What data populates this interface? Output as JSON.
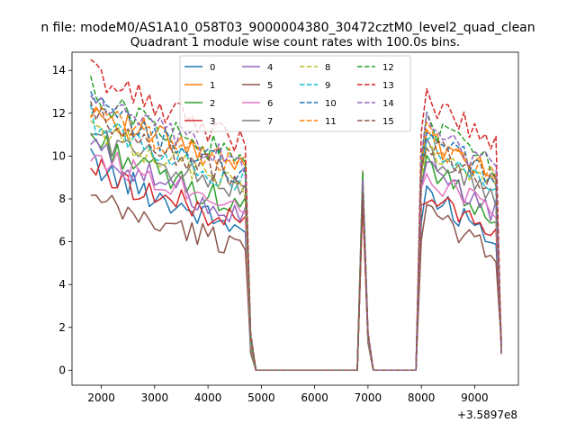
{
  "figure": {
    "suptitle": "n file: modeM0/AS1A10_058T03_9000004380_30472cztM0_level2_quad_clean",
    "title": "Quadrant 1 module wise count rates with 100.0s bins."
  },
  "chart_data": {
    "type": "line",
    "title": "Quadrant 1 module wise count rates with 100.0s bins.",
    "xlabel": "",
    "ylabel": "",
    "x_offset_label": "+3.5897e8",
    "xlim": [
      1450,
      9820
    ],
    "ylim": [
      -0.7,
      14.85
    ],
    "xticks": [
      2000,
      3000,
      4000,
      5000,
      6000,
      7000,
      8000,
      9000
    ],
    "xtick_labels": [
      "2000",
      "3000",
      "4000",
      "5000",
      "6000",
      "7000",
      "8000",
      "9000"
    ],
    "yticks": [
      0,
      2,
      4,
      6,
      8,
      10,
      12,
      14
    ],
    "ytick_labels": [
      "0",
      "2",
      "4",
      "6",
      "8",
      "10",
      "12",
      "14"
    ],
    "grid": false,
    "legend": {
      "placement": "upper center",
      "columns": 4
    },
    "segments": {
      "seg1": {
        "t_start": 1800,
        "t_end": 4700,
        "step": 100
      },
      "drop": [
        [
          4800,
          1.3
        ],
        [
          4900,
          0
        ]
      ],
      "gap1": {
        "t_start": 5000,
        "t_end": 6800,
        "value": 0
      },
      "spike": [
        [
          6900,
          8.6
        ],
        [
          7000,
          1.8
        ],
        [
          7100,
          0
        ]
      ],
      "gap2": {
        "t_start": 7200,
        "t_end": 7900,
        "value": 0
      },
      "seg2": {
        "t_start": 8000,
        "t_end": 9400,
        "step": 100
      },
      "end": [
        [
          9500,
          1.5
        ]
      ]
    },
    "series": [
      {
        "name": "0",
        "color": "#1f77b4",
        "dash": "solid",
        "seg1_start": 9.8,
        "seg1_end": 6.5,
        "seg2_peak": 8.6,
        "seg2_end": 6.3
      },
      {
        "name": "1",
        "color": "#ff7f0e",
        "dash": "solid",
        "seg1_start": 12.4,
        "seg1_end": 9.4,
        "seg2_peak": 11.2,
        "seg2_end": 9.0
      },
      {
        "name": "2",
        "color": "#2ca02c",
        "dash": "solid",
        "seg1_start": 11.0,
        "seg1_end": 7.5,
        "seg2_peak": 10.0,
        "seg2_end": 7.2
      },
      {
        "name": "3",
        "color": "#d62728",
        "dash": "solid",
        "seg1_start": 9.6,
        "seg1_end": 6.8,
        "seg2_peak": 8.4,
        "seg2_end": 6.6
      },
      {
        "name": "4",
        "color": "#9467bd",
        "dash": "solid",
        "seg1_start": 10.6,
        "seg1_end": 7.2,
        "seg2_peak": 9.6,
        "seg2_end": 7.4
      },
      {
        "name": "5",
        "color": "#8c564b",
        "dash": "solid",
        "seg1_start": 8.0,
        "seg1_end": 5.8,
        "seg2_peak": 7.6,
        "seg2_end": 5.6
      },
      {
        "name": "6",
        "color": "#e377c2",
        "dash": "solid",
        "seg1_start": 10.2,
        "seg1_end": 7.8,
        "seg2_peak": 9.3,
        "seg2_end": 7.6
      },
      {
        "name": "7",
        "color": "#7f7f7f",
        "dash": "solid",
        "seg1_start": 11.2,
        "seg1_end": 8.4,
        "seg2_peak": 10.4,
        "seg2_end": 8.2
      },
      {
        "name": "8",
        "color": "#bcbd22",
        "dash": "dashed",
        "seg1_start": 11.6,
        "seg1_end": 8.6,
        "seg2_peak": 10.6,
        "seg2_end": 8.4
      },
      {
        "name": "9",
        "color": "#17becf",
        "dash": "dashed",
        "seg1_start": 11.8,
        "seg1_end": 8.8,
        "seg2_peak": 10.8,
        "seg2_end": 8.6
      },
      {
        "name": "10",
        "color": "#1f77b4",
        "dash": "dashed",
        "seg1_start": 12.6,
        "seg1_end": 9.2,
        "seg2_peak": 11.4,
        "seg2_end": 9.0
      },
      {
        "name": "11",
        "color": "#ff7f0e",
        "dash": "dashed",
        "seg1_start": 12.2,
        "seg1_end": 9.5,
        "seg2_peak": 11.0,
        "seg2_end": 9.2
      },
      {
        "name": "12",
        "color": "#2ca02c",
        "dash": "dashed",
        "seg1_start": 13.1,
        "seg1_end": 9.8,
        "seg2_peak": 11.8,
        "seg2_end": 9.6
      },
      {
        "name": "13",
        "color": "#d62728",
        "dash": "dashed",
        "seg1_start": 14.1,
        "seg1_end": 10.6,
        "seg2_peak": 12.7,
        "seg2_end": 10.8
      },
      {
        "name": "14",
        "color": "#9467bd",
        "dash": "dashed",
        "seg1_start": 12.9,
        "seg1_end": 9.6,
        "seg2_peak": 11.6,
        "seg2_end": 9.5
      },
      {
        "name": "15",
        "color": "#8c564b",
        "dash": "dashed",
        "seg1_start": 12.0,
        "seg1_end": 8.9,
        "seg2_peak": 10.9,
        "seg2_end": 8.7
      }
    ]
  }
}
